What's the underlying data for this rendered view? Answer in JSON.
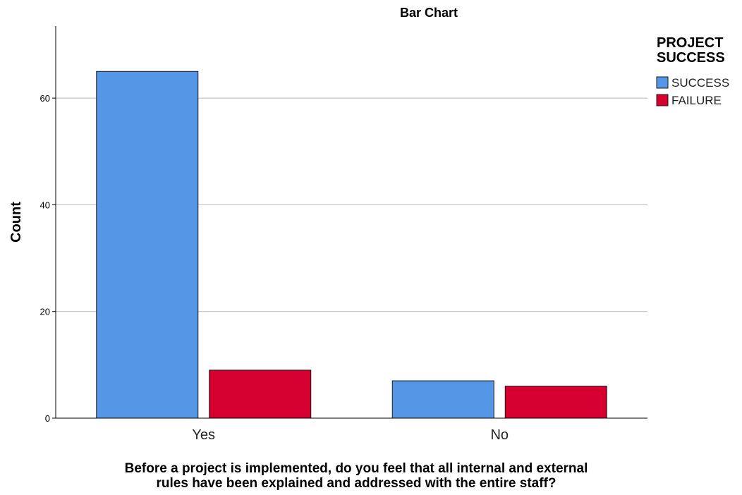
{
  "chart_data": {
    "type": "bar",
    "title": "Bar Chart",
    "xlabel_lines": [
      "Before a project is implemented, do you feel that all internal and external",
      "rules have been explained and addressed with the entire staff?"
    ],
    "ylabel": "Count",
    "categories": [
      "Yes",
      "No"
    ],
    "series": [
      {
        "name": "SUCCESS",
        "values": [
          65,
          7
        ],
        "color": "#5596e6"
      },
      {
        "name": "FAILURE",
        "values": [
          9,
          6
        ],
        "color": "#d5002f"
      }
    ],
    "ylim": [
      0,
      73.5
    ],
    "yticks": [
      0,
      20,
      40,
      60
    ],
    "grid": true,
    "legend": {
      "title_lines": [
        "PROJECT",
        "SUCCESS"
      ],
      "position": "top-right"
    }
  }
}
